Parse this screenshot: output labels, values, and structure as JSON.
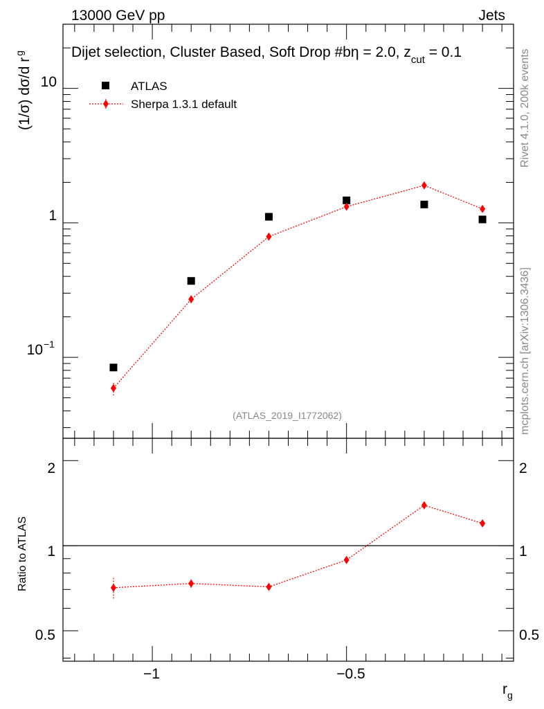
{
  "header": {
    "left": "13000 GeV pp",
    "right": "Jets"
  },
  "side": {
    "rivet": "Rivet 4.1.0,  200k events",
    "mcplots": "mcplots.cern.ch [arXiv:1306.3436]"
  },
  "chart_data": [
    {
      "type": "scatter",
      "title_main": "Dijet selection, Cluster Based, Soft Drop #b",
      "title_eq1": "η = 2.0, z",
      "title_sub": "cut",
      "title_eq2": " = 0.1",
      "ylabel": "(1/σ) dσ/d r",
      "ylabel_sub": "g",
      "yscale": "log",
      "ylim": [
        0.025,
        30
      ],
      "xlim": [
        -1.23,
        -0.07
      ],
      "ytick_labels": [
        "10",
        "1",
        "10"
      ],
      "ytick_exp": "−1",
      "watermark": "(ATLAS_2019_I1772062)",
      "legend": [
        {
          "label": "ATLAS",
          "marker": "square",
          "color": "#000000"
        },
        {
          "label": "Sherpa 1.3.1 default",
          "marker": "diamond",
          "color": "#ff0000"
        }
      ],
      "series": [
        {
          "name": "ATLAS",
          "color": "#000000",
          "x": [
            -1.1,
            -0.9,
            -0.7,
            -0.5,
            -0.3,
            -0.15
          ],
          "y": [
            0.084,
            0.37,
            1.11,
            1.47,
            1.37,
            1.06
          ]
        },
        {
          "name": "Sherpa 1.3.1 default",
          "color": "#ff0000",
          "x": [
            -1.1,
            -0.9,
            -0.7,
            -0.5,
            -0.3,
            -0.15
          ],
          "y": [
            0.059,
            0.27,
            0.79,
            1.32,
            1.9,
            1.27
          ],
          "yerr_lo": [
            0.007,
            0.012,
            0.02,
            0.02,
            0.03,
            0.02
          ],
          "yerr_hi": [
            0.007,
            0.012,
            0.02,
            0.02,
            0.03,
            0.02
          ]
        }
      ]
    },
    {
      "type": "scatter",
      "ylabel": "Ratio to ATLAS",
      "xlabel": "r",
      "xlabel_sub": "g",
      "yscale": "log",
      "ylim": [
        0.39,
        2.4
      ],
      "xlim": [
        -1.23,
        -0.07
      ],
      "ytick_labels": [
        "2",
        "1",
        "0.5"
      ],
      "xtick_labels": [
        "−1",
        "−0.5"
      ],
      "reference_line": 1,
      "series": [
        {
          "name": "Sherpa 1.3.1 default / ATLAS",
          "color": "#ff0000",
          "x": [
            -1.1,
            -0.9,
            -0.7,
            -0.5,
            -0.3,
            -0.15
          ],
          "y": [
            0.71,
            0.735,
            0.715,
            0.89,
            1.39,
            1.2
          ],
          "yerr_lo": [
            0.06,
            0.025,
            0.012,
            0.01,
            0.015,
            0.012
          ],
          "yerr_hi": [
            0.06,
            0.025,
            0.012,
            0.01,
            0.015,
            0.012
          ]
        }
      ]
    }
  ]
}
